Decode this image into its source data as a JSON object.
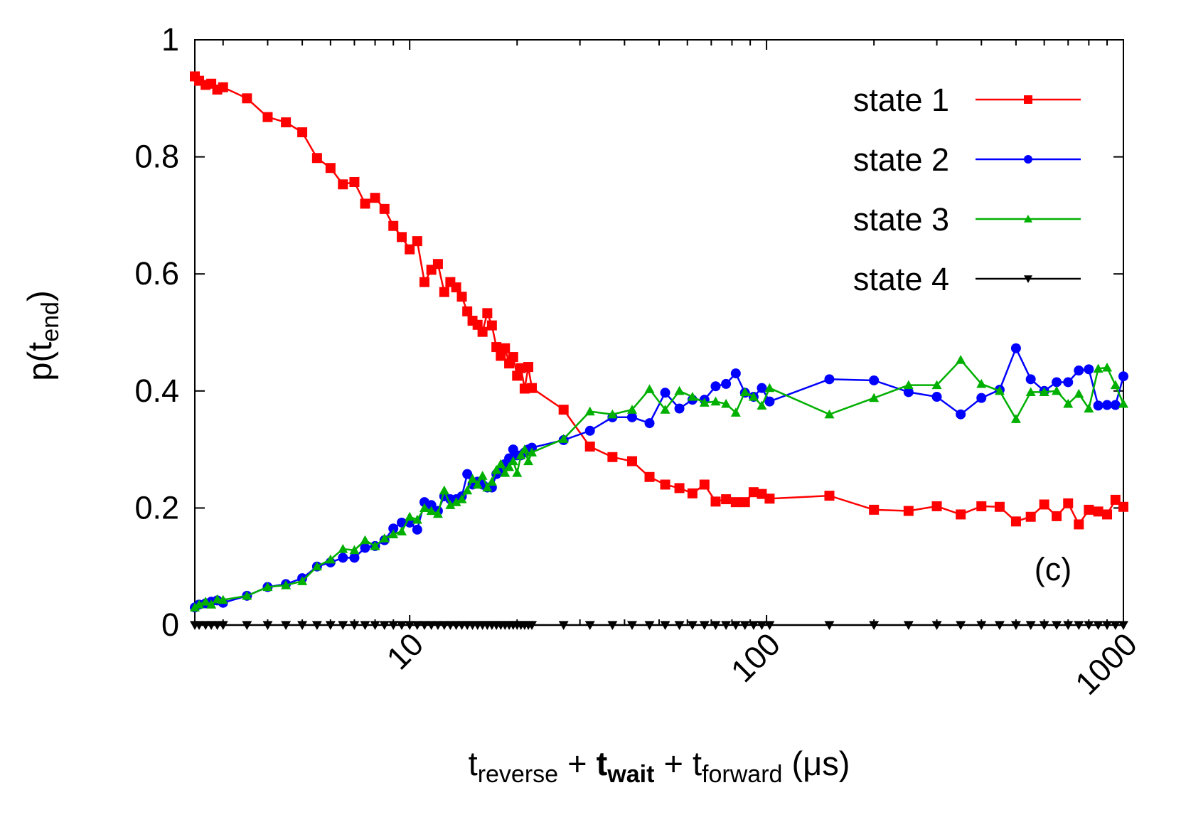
{
  "chart_data": {
    "type": "line",
    "log_x": true,
    "xlim": [
      2.5,
      1000
    ],
    "ylim": [
      0,
      1
    ],
    "xticks": [
      10,
      100,
      1000
    ],
    "xminorticks": [
      3,
      4,
      5,
      6,
      7,
      8,
      9,
      20,
      30,
      40,
      50,
      60,
      70,
      80,
      90,
      200,
      300,
      400,
      500,
      600,
      700,
      800,
      900
    ],
    "yticks": [
      0,
      0.2,
      0.4,
      0.6,
      0.8,
      1
    ],
    "ylabel_parts": [
      {
        "text": "p(t"
      },
      {
        "text": "end",
        "sub": true
      },
      {
        "text": ")"
      }
    ],
    "xlabel_parts": [
      {
        "text": "t"
      },
      {
        "text": "reverse",
        "sub": true
      },
      {
        "text": " + "
      },
      {
        "text": "t",
        "bold": true
      },
      {
        "text": "wait",
        "sub": true,
        "bold": true
      },
      {
        "text": " + t"
      },
      {
        "text": "forward",
        "sub": true
      },
      {
        "text": " (μs)"
      }
    ],
    "annotation": "(c)",
    "legend_position": "upper right",
    "x": [
      2.5,
      2.57,
      2.68,
      2.78,
      2.89,
      3.0,
      3.5,
      4.0,
      4.5,
      5.0,
      5.5,
      6.0,
      6.5,
      7.0,
      7.5,
      8.0,
      8.5,
      9.0,
      9.5,
      10,
      10.5,
      11,
      11.5,
      12,
      12.5,
      13,
      13.5,
      14,
      14.5,
      15,
      15.5,
      16,
      16.5,
      17,
      17.5,
      18,
      18.5,
      19,
      19.5,
      20,
      20.5,
      21,
      21.5,
      22,
      27,
      32,
      37,
      42,
      47,
      52,
      57,
      62,
      67,
      72,
      77,
      82,
      87,
      92,
      97,
      102,
      150,
      200,
      250,
      300,
      350,
      400,
      450,
      500,
      550,
      600,
      650,
      700,
      750,
      800,
      850,
      900,
      950,
      1000
    ],
    "series": [
      {
        "name": "state 1",
        "color": "#ff0000",
        "marker": "square",
        "values": [
          0.9375,
          0.93,
          0.923,
          0.925,
          0.915,
          0.919,
          0.9,
          0.868,
          0.859,
          0.842,
          0.798,
          0.781,
          0.753,
          0.757,
          0.72,
          0.73,
          0.711,
          0.682,
          0.663,
          0.642,
          0.656,
          0.586,
          0.607,
          0.617,
          0.569,
          0.586,
          0.577,
          0.561,
          0.536,
          0.52,
          0.513,
          0.501,
          0.533,
          0.512,
          0.475,
          0.46,
          0.473,
          0.447,
          0.458,
          0.426,
          0.439,
          0.404,
          0.441,
          0.405,
          0.368,
          0.305,
          0.287,
          0.28,
          0.253,
          0.24,
          0.234,
          0.225,
          0.24,
          0.211,
          0.215,
          0.21,
          0.21,
          0.227,
          0.224,
          0.216,
          0.221,
          0.197,
          0.195,
          0.203,
          0.189,
          0.203,
          0.202,
          0.177,
          0.185,
          0.206,
          0.186,
          0.208,
          0.172,
          0.197,
          0.194,
          0.189,
          0.214,
          0.202
        ]
      },
      {
        "name": "state 2",
        "color": "#0000ff",
        "marker": "circle",
        "values": [
          0.03,
          0.035,
          0.037,
          0.04,
          0.042,
          0.038,
          0.05,
          0.065,
          0.07,
          0.08,
          0.1,
          0.107,
          0.115,
          0.115,
          0.132,
          0.135,
          0.145,
          0.165,
          0.175,
          0.175,
          0.163,
          0.21,
          0.205,
          0.195,
          0.22,
          0.215,
          0.215,
          0.22,
          0.258,
          0.24,
          0.245,
          0.24,
          0.235,
          0.235,
          0.258,
          0.265,
          0.275,
          0.285,
          0.3,
          0.29,
          0.29,
          0.295,
          0.3,
          0.303,
          0.316,
          0.332,
          0.355,
          0.355,
          0.345,
          0.397,
          0.37,
          0.385,
          0.385,
          0.408,
          0.412,
          0.43,
          0.397,
          0.39,
          0.405,
          0.382,
          0.42,
          0.418,
          0.398,
          0.39,
          0.36,
          0.388,
          0.402,
          0.473,
          0.42,
          0.4,
          0.415,
          0.415,
          0.435,
          0.437,
          0.375,
          0.376,
          0.376,
          0.425
        ]
      },
      {
        "name": "state 3",
        "color": "#00b000",
        "marker": "triangle-up",
        "values": [
          0.03,
          0.035,
          0.04,
          0.035,
          0.044,
          0.043,
          0.05,
          0.065,
          0.068,
          0.075,
          0.1,
          0.112,
          0.13,
          0.128,
          0.145,
          0.135,
          0.148,
          0.155,
          0.16,
          0.185,
          0.18,
          0.2,
          0.195,
          0.19,
          0.23,
          0.205,
          0.21,
          0.215,
          0.23,
          0.25,
          0.24,
          0.255,
          0.235,
          0.245,
          0.265,
          0.275,
          0.26,
          0.27,
          0.28,
          0.26,
          0.29,
          0.3,
          0.28,
          0.295,
          0.318,
          0.365,
          0.36,
          0.368,
          0.403,
          0.368,
          0.4,
          0.39,
          0.38,
          0.382,
          0.378,
          0.363,
          0.398,
          0.39,
          0.375,
          0.405,
          0.36,
          0.388,
          0.41,
          0.41,
          0.453,
          0.412,
          0.4,
          0.352,
          0.398,
          0.398,
          0.4,
          0.378,
          0.395,
          0.37,
          0.438,
          0.44,
          0.41,
          0.378
        ]
      },
      {
        "name": "state 4",
        "color": "#000000",
        "marker": "triangle-down",
        "values": [
          0,
          0,
          0,
          0,
          0,
          0,
          0,
          0,
          0,
          0,
          0,
          0,
          0,
          0,
          0,
          0,
          0,
          0,
          0,
          0,
          0,
          0,
          0,
          0,
          0,
          0,
          0,
          0,
          0,
          0,
          0,
          0,
          0,
          0,
          0,
          0,
          0,
          0,
          0,
          0,
          0,
          0,
          0,
          0,
          0,
          0,
          0,
          0,
          0,
          0,
          0,
          0,
          0,
          0,
          0,
          0,
          0,
          0,
          0,
          0,
          0,
          0,
          0,
          0,
          0,
          0,
          0,
          0,
          0,
          0,
          0,
          0,
          0,
          0,
          0,
          0,
          0,
          0
        ]
      }
    ]
  }
}
